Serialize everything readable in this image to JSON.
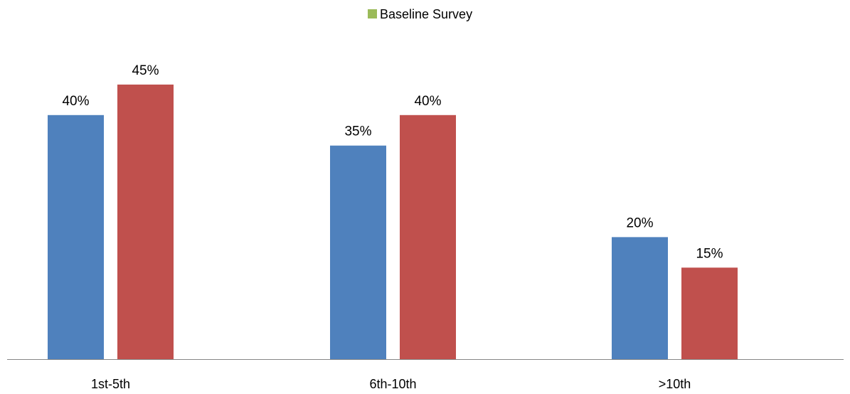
{
  "chart_data": {
    "type": "bar",
    "categories": [
      "1st-5th",
      "6th-10th",
      ">10th"
    ],
    "series": [
      {
        "values": [
          40,
          35,
          20
        ],
        "color": "#4f81bd",
        "labels": [
          "40%",
          "35%",
          "20%"
        ]
      },
      {
        "values": [
          45,
          40,
          15
        ],
        "color": "#c0504d",
        "labels": [
          "45%",
          "40%",
          "15%"
        ]
      }
    ],
    "legend": {
      "entries": [
        {
          "name": "Baseline Survey",
          "color": "#9bbb59"
        }
      ],
      "position": "top"
    },
    "ylim": [
      0,
      50
    ],
    "grid": false,
    "axis_color": "#868686"
  }
}
